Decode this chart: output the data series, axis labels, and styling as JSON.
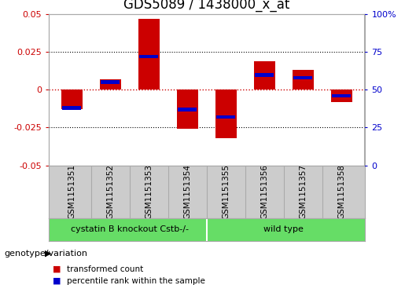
{
  "title": "GDS5089 / 1438000_x_at",
  "samples": [
    "GSM1151351",
    "GSM1151352",
    "GSM1151353",
    "GSM1151354",
    "GSM1151355",
    "GSM1151356",
    "GSM1151357",
    "GSM1151358"
  ],
  "red_values": [
    -0.013,
    0.007,
    0.047,
    -0.026,
    -0.032,
    0.019,
    0.013,
    -0.008
  ],
  "blue_values": [
    -0.012,
    0.005,
    0.022,
    -0.013,
    -0.018,
    0.01,
    0.008,
    -0.004
  ],
  "ylim": [
    -0.05,
    0.05
  ],
  "yticks_left": [
    -0.05,
    -0.025,
    0,
    0.025,
    0.05
  ],
  "yticks_right": [
    0,
    25,
    50,
    75,
    100
  ],
  "yticks_right_pos": [
    -0.05,
    -0.025,
    0,
    0.025,
    0.05
  ],
  "group1_label": "cystatin B knockout Cstb-/-",
  "group2_label": "wild type",
  "group_label_text": "genotype/variation",
  "legend1_label": "transformed count",
  "legend2_label": "percentile rank within the sample",
  "red_color": "#cc0000",
  "blue_color": "#0000cc",
  "bar_width": 0.55,
  "bg_color": "#ffffff",
  "plot_bg_color": "#ffffff",
  "sample_bg_color": "#cccccc",
  "group_bg_color": "#66dd66",
  "grid_color": "#000000",
  "zero_line_color": "#cc0000",
  "left_tick_color": "#cc0000",
  "right_tick_color": "#0000cc",
  "title_fontsize": 12,
  "tick_fontsize": 8,
  "sample_fontsize": 7.5,
  "group_fontsize": 8,
  "legend_fontsize": 7.5
}
